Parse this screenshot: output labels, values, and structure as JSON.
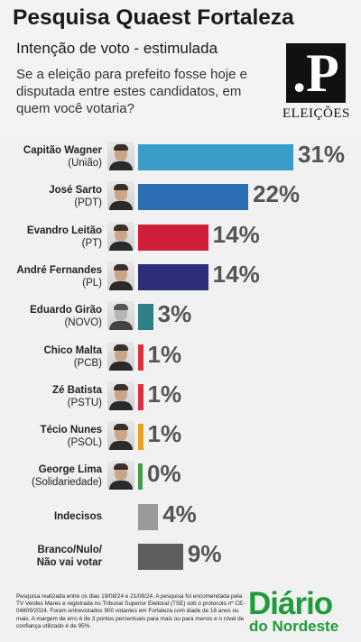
{
  "header": {
    "title": "Pesquisa Quaest Fortaleza",
    "subtitle": "Intenção de voto - estimulada",
    "question": "Se a eleição para prefeito fosse hoje e disputada entre estes candidatos, em quem você votaria?",
    "badge_letter": ".P",
    "badge_label": "ELEIÇÕES"
  },
  "chart_data": {
    "type": "bar",
    "orientation": "horizontal",
    "title": "Pesquisa Quaest Fortaleza",
    "subtitle": "Intenção de voto - estimulada",
    "xlim": [
      0,
      31
    ],
    "unit": "%",
    "categories": [
      {
        "name": "Capitão Wagner",
        "party": "(União)",
        "value": 31,
        "label": "31%",
        "color": "#3a9cc8",
        "photo": true
      },
      {
        "name": "José Sarto",
        "party": "(PDT)",
        "value": 22,
        "label": "22%",
        "color": "#2d6fb5",
        "photo": true
      },
      {
        "name": "Evandro Leitão",
        "party": "(PT)",
        "value": 14,
        "label": "14%",
        "color": "#cf1f3a",
        "photo": true
      },
      {
        "name": "André Fernandes",
        "party": "(PL)",
        "value": 14,
        "label": "14%",
        "color": "#2d2f7a",
        "photo": true
      },
      {
        "name": "Eduardo Girão",
        "party": "(NOVO)",
        "value": 3,
        "label": "3%",
        "color": "#2f7f86",
        "photo": true
      },
      {
        "name": "Chico Malta",
        "party": "(PCB)",
        "value": 1,
        "label": "1%",
        "color": "#d9323f",
        "photo": true
      },
      {
        "name": "Zé Batista",
        "party": "(PSTU)",
        "value": 1,
        "label": "1%",
        "color": "#d9323f",
        "photo": true
      },
      {
        "name": "Técio Nunes",
        "party": "(PSOL)",
        "value": 1,
        "label": "1%",
        "color": "#e8a020",
        "photo": true
      },
      {
        "name": "George Lima",
        "party": "(Solidariedade)",
        "value": 0,
        "label": "0%",
        "color": "#3f9c4a",
        "photo": true
      },
      {
        "name": "Indecisos",
        "party": "",
        "value": 4,
        "label": "4%",
        "color": "#9a9a9a",
        "photo": false
      },
      {
        "name": "Branco/Nulo/",
        "party": "Não vai votar",
        "value": 9,
        "label": "9%",
        "color": "#5e5e5e",
        "photo": false
      }
    ]
  },
  "footer": {
    "note": "Pesquisa realizada entre os dias 19/08/24 e 21/08/24. A pesquisa foi encomendada pela TV Verdes Mares e registrada no Tribunal Superior Eleitoral (TSE) sob o protocolo nº CE-04809/2024. Foram entrevistados 900 votantes em Fortaleza com idade de 16 anos ou mais. A margem de erro é de 3 pontos percentuais para mais ou para menos e o nível de confiança utilizado é de 95%.",
    "logo_line1": "Diário",
    "logo_line2": "do Nordeste"
  }
}
